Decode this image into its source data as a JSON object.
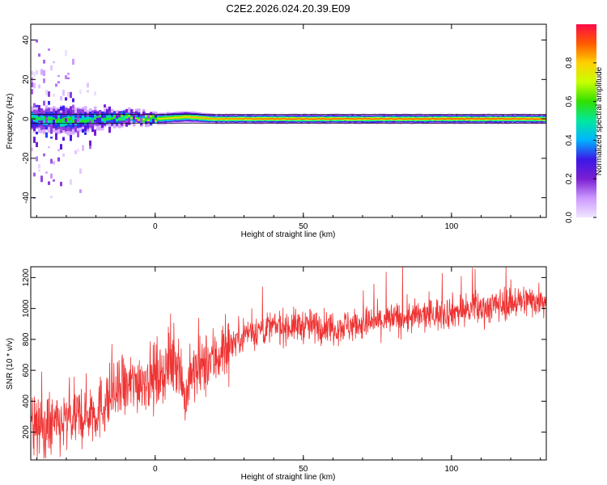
{
  "title": "C2E2.2026.024.20.39.E09",
  "colorbar": {
    "label": "Normalized spectral amplitude",
    "ticks": [
      "0.0",
      "0.2",
      "0.4",
      "0.6",
      "0.8"
    ],
    "tick_values": [
      0.0,
      0.2,
      0.4,
      0.6,
      0.8
    ],
    "range": [
      0,
      1
    ],
    "colormap": [
      "#f0e6ff",
      "#cc99ff",
      "#7a1fd1",
      "#3b17e8",
      "#00b4ff",
      "#00e8a0",
      "#30e000",
      "#c8ff00",
      "#ffd000",
      "#ff5a00",
      "#ff0a46"
    ]
  },
  "chart_data": [
    {
      "type": "heatmap",
      "title": "",
      "xlabel": "Height of straight line (km)",
      "ylabel": "Frequency (Hz)",
      "xlim": [
        -42,
        132
      ],
      "ylim": [
        -50,
        48
      ],
      "xticks": [
        "0",
        "50",
        "100"
      ],
      "xtick_values": [
        0,
        50,
        100
      ],
      "yticks": [
        "40",
        "20",
        "0",
        "-20",
        "-40"
      ],
      "ytick_values": [
        40,
        20,
        0,
        -20,
        -40
      ],
      "band": {
        "x": [
          -42,
          -30,
          -20,
          -10,
          0,
          10,
          20,
          40,
          60,
          80,
          100,
          132
        ],
        "center_freq": [
          0,
          -1,
          0,
          1,
          0,
          1,
          0,
          0,
          0,
          0,
          0,
          0
        ],
        "half_width_hz": [
          6,
          7,
          5,
          4,
          3,
          3,
          2.5,
          2.5,
          2.5,
          2.5,
          2.5,
          2.5
        ],
        "peak_amplitude": [
          0.55,
          0.6,
          0.55,
          0.65,
          0.75,
          0.8,
          0.85,
          0.9,
          0.9,
          0.9,
          0.92,
          0.9
        ],
        "scatter_spread_hz": [
          40,
          30,
          12,
          5,
          3,
          2,
          1,
          1,
          1,
          1,
          1,
          1
        ]
      }
    },
    {
      "type": "line",
      "title": "",
      "xlabel": "Height of straight line (km)",
      "ylabel": "SNR (10 * v/v)",
      "xlim": [
        -42,
        132
      ],
      "ylim": [
        20,
        1270
      ],
      "xticks": [
        "0",
        "50",
        "100"
      ],
      "xtick_values": [
        0,
        50,
        100
      ],
      "yticks": [
        "1200",
        "1000",
        "800",
        "600",
        "400",
        "200"
      ],
      "ytick_values": [
        1200,
        1000,
        800,
        600,
        400,
        200
      ],
      "color": "#ee3333",
      "x": [
        -42,
        -35,
        -30,
        -25,
        -22,
        -20,
        -15,
        -10,
        -5,
        0,
        5,
        8,
        10,
        12,
        15,
        20,
        25,
        30,
        40,
        50,
        60,
        70,
        80,
        90,
        100,
        110,
        120,
        132
      ],
      "y": [
        220,
        230,
        260,
        300,
        340,
        330,
        430,
        480,
        540,
        560,
        620,
        680,
        400,
        560,
        600,
        680,
        760,
        840,
        880,
        890,
        880,
        900,
        930,
        950,
        980,
        1000,
        1040,
        1060
      ]
    }
  ]
}
